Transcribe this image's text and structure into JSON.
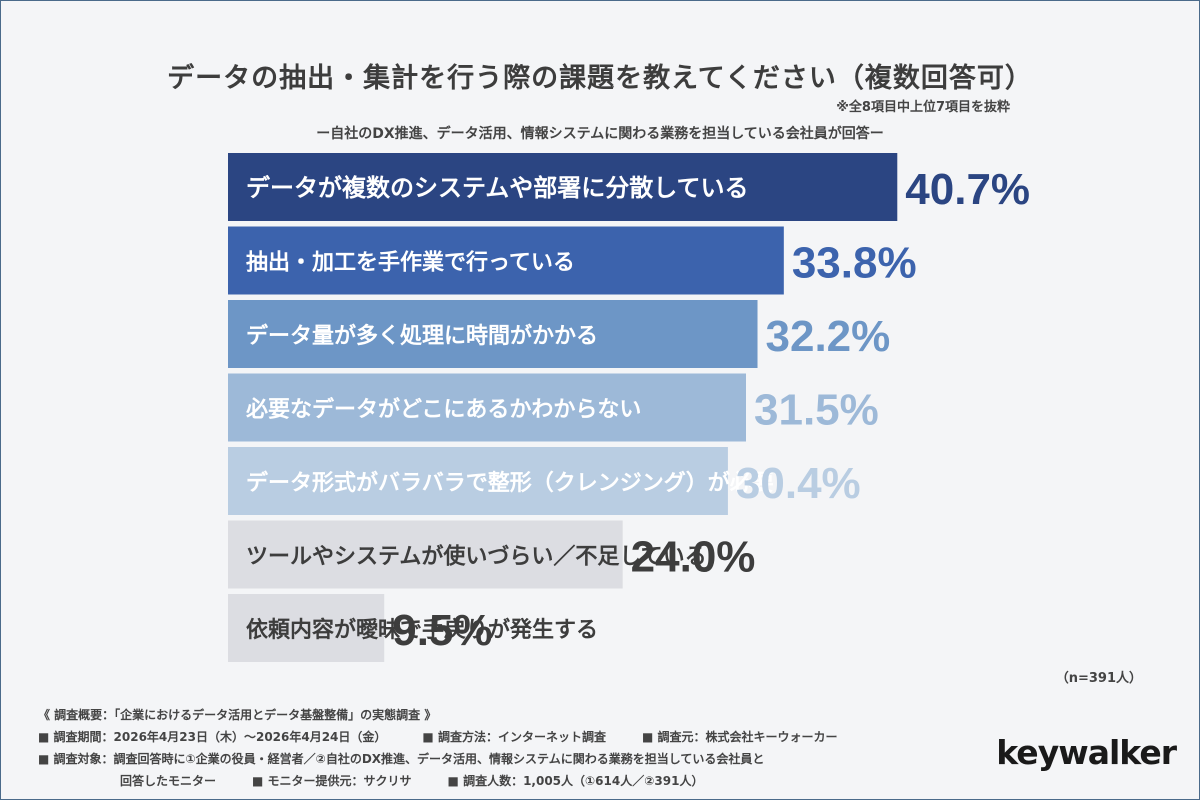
{
  "title": "データの抽出・集計を行う際の課題を教えてください（複数回答可）",
  "note": "※全8項目中上位7項目を抜粋",
  "subtitle": "ー自社のDX推進、データ活用、情報システムに関わる業務を担当している会社員が回答ー",
  "sample_size": "（n=391人）",
  "chart_data": {
    "type": "bar",
    "orientation": "horizontal",
    "value_format": "percent_one_decimal",
    "categories": [
      "データが複数のシステムや部署に分散している",
      "抽出・加工を手作業で行っている",
      "データ量が多く処理に時間がかかる",
      "必要なデータがどこにあるかわからない",
      "データ形式がバラバラで整形（クレンジング）が必要",
      "ツールやシステムが使いづらい／不足している",
      "依頼内容が曖昧で手戻りが発生する"
    ],
    "values": [
      40.7,
      33.8,
      32.2,
      31.5,
      30.4,
      24.0,
      9.5
    ],
    "bar_colors": [
      "#2b4582",
      "#3c63ad",
      "#6d96c6",
      "#9db9d8",
      "#b9cde2",
      "#dcdde2",
      "#dcdde2"
    ],
    "label_colors": [
      "#ffffff",
      "#ffffff",
      "#ffffff",
      "#ffffff",
      "#ffffff",
      "#3d3d3d",
      "#3d3d3d"
    ],
    "value_colors": [
      "#2b4582",
      "#3c63ad",
      "#6d96c6",
      "#9db9d8",
      "#b9cde2",
      "#3d3d3d",
      "#3d3d3d"
    ],
    "xlim": [
      0,
      45
    ]
  },
  "footer": {
    "overview": "《 調査概要：「企業におけるデータ活用とデータ基盤整備」の実態調査 》",
    "period": "■ 調査期間：2026年4月23日（木）〜2026年4月24日（金）",
    "method": "■ 調査方法：インターネット調査",
    "source": "■ 調査元：株式会社キーウォーカー",
    "target": "■ 調査対象：調査回答時に①企業の役員・経営者／②自社のDX推進、データ活用、情報システムに関わる業務を担当している会社員と",
    "target_cont": "回答したモニター",
    "provider": "■ モニター提供元：サクリサ",
    "count": "■ 調査人数：1,005人（①614人／②391人）"
  },
  "logo": "keywalker"
}
